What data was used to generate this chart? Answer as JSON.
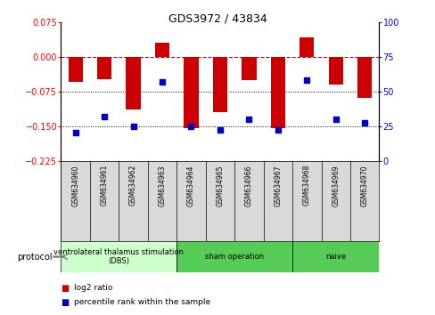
{
  "title": "GDS3972 / 43834",
  "samples": [
    "GSM634960",
    "GSM634961",
    "GSM634962",
    "GSM634963",
    "GSM634964",
    "GSM634965",
    "GSM634966",
    "GSM634967",
    "GSM634968",
    "GSM634969",
    "GSM634970"
  ],
  "log2_ratio": [
    -0.055,
    -0.048,
    -0.115,
    0.03,
    -0.155,
    -0.12,
    -0.05,
    -0.155,
    0.042,
    -0.06,
    -0.09
  ],
  "percentile_rank": [
    20,
    32,
    25,
    57,
    25,
    22,
    30,
    22,
    58,
    30,
    27
  ],
  "ylim_left": [
    -0.225,
    0.075
  ],
  "ylim_right": [
    0,
    100
  ],
  "yticks_left": [
    0.075,
    0,
    -0.075,
    -0.15,
    -0.225
  ],
  "yticks_right": [
    100,
    75,
    50,
    25,
    0
  ],
  "bar_color": "#cc0000",
  "point_color": "#0000cc",
  "zero_line_color": "#cc0000",
  "grid_color": "#000000",
  "legend_bar_color": "#cc0000",
  "legend_point_color": "#0000cc",
  "background_color": "#ffffff",
  "group_dbs_color": "#ccffcc",
  "group_sham_color": "#55cc55",
  "group_naive_color": "#55cc55",
  "sample_box_color": "#d9d9d9",
  "bar_width": 0.5
}
